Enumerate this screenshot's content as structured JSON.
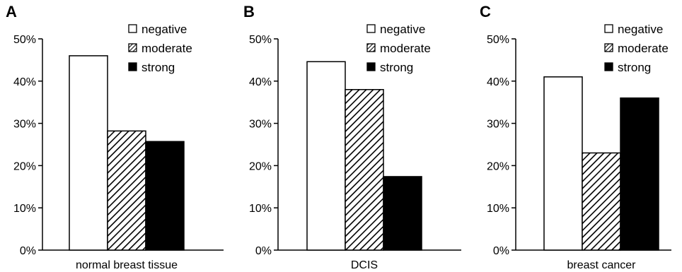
{
  "chart_data": [
    {
      "type": "bar",
      "panel": "A",
      "xlabel": "normal breast tissue",
      "ylim": [
        0,
        50
      ],
      "yticks": [
        "0%",
        "10%",
        "20%",
        "30%",
        "40%",
        "50%"
      ],
      "series": [
        {
          "name": "negative",
          "values": [
            46
          ]
        },
        {
          "name": "moderate",
          "values": [
            28.2
          ]
        },
        {
          "name": "strong",
          "values": [
            25.7
          ]
        }
      ],
      "legend": "top-right",
      "grid": false
    },
    {
      "type": "bar",
      "panel": "B",
      "xlabel": "DCIS",
      "ylim": [
        0,
        50
      ],
      "yticks": [
        "0%",
        "10%",
        "20%",
        "30%",
        "40%",
        "50%"
      ],
      "series": [
        {
          "name": "negative",
          "values": [
            44.6
          ]
        },
        {
          "name": "moderate",
          "values": [
            38
          ]
        },
        {
          "name": "strong",
          "values": [
            17.4
          ]
        }
      ],
      "legend": "top-right",
      "grid": false
    },
    {
      "type": "bar",
      "panel": "C",
      "xlabel": "breast cancer",
      "ylim": [
        0,
        50
      ],
      "yticks": [
        "0%",
        "10%",
        "20%",
        "30%",
        "40%",
        "50%"
      ],
      "series": [
        {
          "name": "negative",
          "values": [
            41
          ]
        },
        {
          "name": "moderate",
          "values": [
            23
          ]
        },
        {
          "name": "strong",
          "values": [
            36
          ]
        }
      ],
      "legend": "top-right",
      "grid": false
    }
  ],
  "colors": {
    "negative": "#ffffff",
    "moderate": "hatched",
    "strong": "#000000"
  }
}
